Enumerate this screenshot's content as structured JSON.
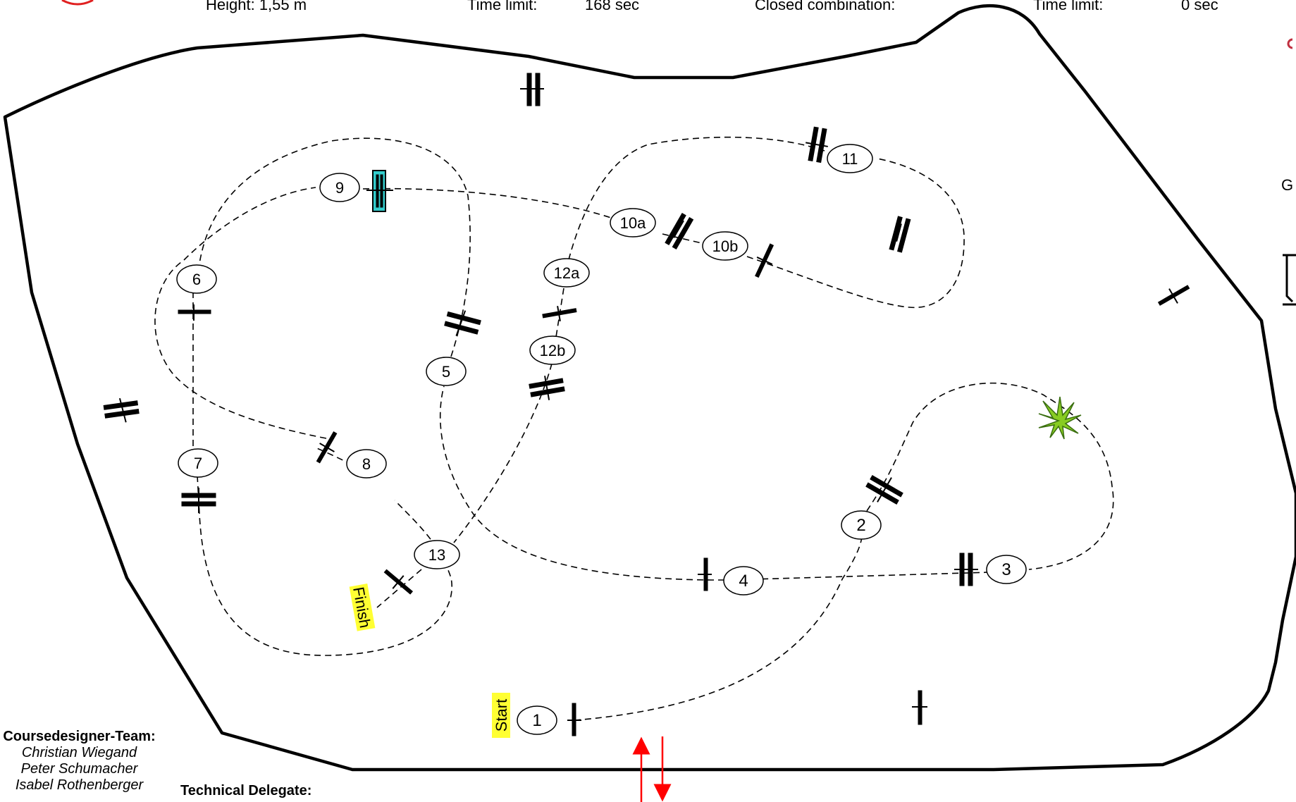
{
  "header": {
    "height": "Height: 1,55 m",
    "time_limit_label_1": "Time limit:",
    "time_limit_value_1": "168 sec",
    "closed_combination_label": "Closed combination:",
    "time_limit_label_2": "Time limit:",
    "time_limit_value_2": "0 sec"
  },
  "edge_text": {
    "g": "G"
  },
  "markers": {
    "start": "Start",
    "finish": "Finish"
  },
  "fences": [
    {
      "label": "1"
    },
    {
      "label": "2"
    },
    {
      "label": "3"
    },
    {
      "label": "4"
    },
    {
      "label": "5"
    },
    {
      "label": "6"
    },
    {
      "label": "7"
    },
    {
      "label": "8"
    },
    {
      "label": "9"
    },
    {
      "label": "10a"
    },
    {
      "label": "10b"
    },
    {
      "label": "11"
    },
    {
      "label": "12a"
    },
    {
      "label": "12b"
    },
    {
      "label": "13"
    }
  ],
  "credits": {
    "designer_title": "Coursedesigner-Team:",
    "designers": [
      "Christian Wiegand",
      "Peter Schumacher",
      "Isabel Rothenberger"
    ],
    "technical_delegate_title": "Technical Delegate:"
  },
  "colors": {
    "arena_outline": "#000000",
    "route_line": "#000000",
    "label_highlight": "#ffff33",
    "special_fence": "#33cccc",
    "entry_arrows": "#ff0000",
    "plant": "#88cc22"
  }
}
